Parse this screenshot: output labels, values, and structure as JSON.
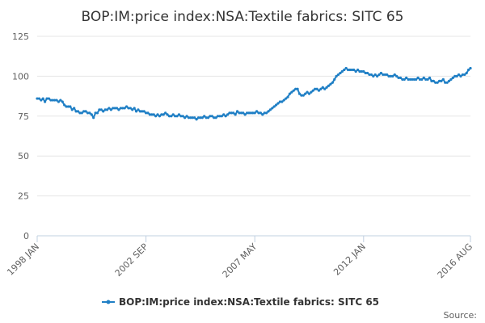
{
  "chart_data": {
    "type": "line",
    "title": "BOP:IM:price index:NSA:Textile fabrics: SITC 65",
    "xlabel": "",
    "ylabel": "",
    "ylim": [
      0,
      125
    ],
    "yticks": [
      "0",
      "25",
      "50",
      "75",
      "100",
      "125"
    ],
    "xticks": [
      {
        "label": "1998 JAN",
        "index": 0
      },
      {
        "label": "2002 SEP",
        "index": 56
      },
      {
        "label": "2007 MAY",
        "index": 112
      },
      {
        "label": "2012 JAN",
        "index": 168
      },
      {
        "label": "2016 AUG",
        "index": 223
      }
    ],
    "series": [
      {
        "name": "BOP:IM:price index:NSA:Textile fabrics: SITC 65",
        "color": "#1f7fc5",
        "start": "1998 JAN",
        "end": "2016 AUG",
        "values": [
          86,
          86,
          85,
          86,
          84,
          86,
          86,
          85,
          85,
          85,
          85,
          84,
          85,
          84,
          82,
          81,
          81,
          81,
          79,
          80,
          78,
          78,
          77,
          77,
          78,
          78,
          77,
          77,
          76,
          74,
          77,
          77,
          79,
          79,
          78,
          79,
          79,
          80,
          79,
          80,
          80,
          80,
          79,
          80,
          80,
          80,
          81,
          80,
          80,
          79,
          80,
          78,
          79,
          78,
          78,
          78,
          77,
          77,
          76,
          76,
          76,
          75,
          76,
          75,
          76,
          76,
          77,
          76,
          75,
          75,
          76,
          75,
          75,
          76,
          75,
          75,
          74,
          75,
          74,
          74,
          74,
          74,
          73,
          74,
          74,
          74,
          75,
          74,
          74,
          75,
          75,
          74,
          74,
          75,
          75,
          75,
          76,
          75,
          76,
          77,
          77,
          77,
          76,
          78,
          77,
          77,
          77,
          76,
          77,
          77,
          77,
          77,
          77,
          78,
          77,
          77,
          76,
          77,
          77,
          78,
          79,
          80,
          81,
          82,
          83,
          84,
          84,
          85,
          86,
          87,
          89,
          90,
          91,
          92,
          92,
          89,
          88,
          88,
          89,
          90,
          89,
          90,
          91,
          92,
          92,
          91,
          92,
          93,
          92,
          93,
          94,
          95,
          96,
          98,
          100,
          101,
          102,
          103,
          104,
          105,
          104,
          104,
          104,
          104,
          103,
          104,
          103,
          103,
          103,
          102,
          102,
          101,
          101,
          100,
          101,
          100,
          101,
          102,
          101,
          101,
          101,
          100,
          100,
          100,
          101,
          100,
          99,
          99,
          98,
          98,
          99,
          98,
          98,
          98,
          98,
          98,
          99,
          98,
          98,
          99,
          98,
          98,
          99,
          97,
          97,
          96,
          96,
          97,
          97,
          98,
          96,
          96,
          97,
          98,
          99,
          100,
          100,
          101,
          100,
          101,
          101,
          102,
          104,
          105
        ]
      }
    ],
    "legend": {
      "position": "bottom-center"
    },
    "source_label": "Source:"
  }
}
